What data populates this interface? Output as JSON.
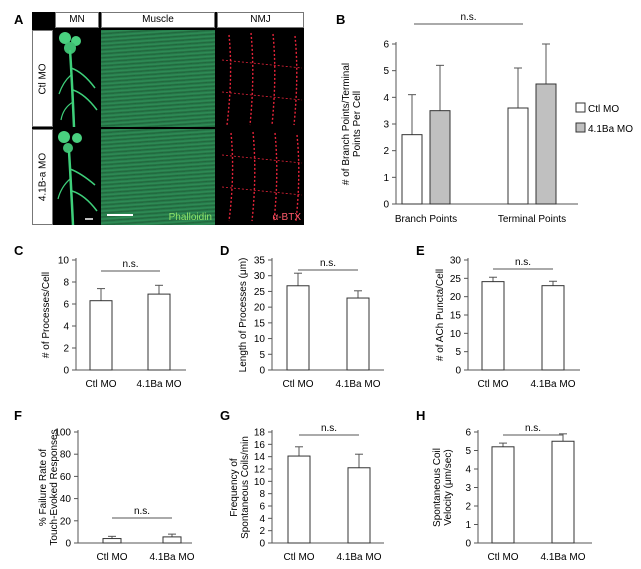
{
  "micrograph": {
    "letter": "A",
    "columns": [
      "MN",
      "Muscle",
      "NMJ"
    ],
    "rows": [
      "Ctl MO",
      "4.1B-a MO"
    ],
    "stain_green": "Phalloidin",
    "stain_red": "α-BTX",
    "colors": {
      "green": "#3ecf7a",
      "red": "#e8243a",
      "muscle": "#2e8a55"
    }
  },
  "chart_data": [
    {
      "id": "B",
      "letter": "B",
      "type": "bar",
      "categories": [
        "Branch Points",
        "Terminal Points"
      ],
      "series": [
        {
          "name": "Ctl MO",
          "values": [
            2.6,
            3.6
          ],
          "errors": [
            1.5,
            1.5
          ],
          "color": "#ffffff"
        },
        {
          "name": "4.1Ba MO",
          "values": [
            3.5,
            4.5
          ],
          "errors": [
            1.7,
            1.5
          ],
          "color": "#c0c0c0"
        }
      ],
      "ylabel": "# of Branch Points/Terminal Points Per Cell",
      "ylim": [
        0,
        6
      ],
      "yticks": [
        0,
        1,
        2,
        3,
        4,
        5,
        6
      ],
      "significance": "n.s.",
      "legend": "right"
    },
    {
      "id": "C",
      "letter": "C",
      "type": "bar",
      "categories": [
        "Ctl MO",
        "4.1Ba MO"
      ],
      "values": [
        6.3,
        6.9
      ],
      "errors": [
        1.1,
        0.8
      ],
      "ylabel": "# of Processes/Cell",
      "ylim": [
        0,
        10
      ],
      "yticks": [
        0,
        2,
        4,
        6,
        8,
        10
      ],
      "significance": "n.s."
    },
    {
      "id": "D",
      "letter": "D",
      "type": "bar",
      "categories": [
        "Ctl MO",
        "4.1Ba MO"
      ],
      "values": [
        26.8,
        22.9
      ],
      "errors": [
        4.0,
        2.3
      ],
      "ylabel": "Length of Processes (μm)",
      "ylim": [
        0,
        35
      ],
      "yticks": [
        0,
        5,
        10,
        15,
        20,
        25,
        30,
        35
      ],
      "significance": "n.s."
    },
    {
      "id": "E",
      "letter": "E",
      "type": "bar",
      "categories": [
        "Ctl MO",
        "4.1Ba MO"
      ],
      "values": [
        24.1,
        23.0
      ],
      "errors": [
        1.2,
        1.2
      ],
      "ylabel": "# of ACh Puncta/Cell",
      "ylim": [
        0,
        30
      ],
      "yticks": [
        0,
        5,
        10,
        15,
        20,
        25,
        30
      ],
      "significance": "n.s."
    },
    {
      "id": "F",
      "letter": "F",
      "type": "bar",
      "categories": [
        "Ctl MO",
        "4.1Ba MO"
      ],
      "values": [
        4,
        5.5
      ],
      "errors": [
        2,
        2.5
      ],
      "ylabel": "% Failure Rate of Touch-Evoked Responses",
      "ylim": [
        0,
        100
      ],
      "yticks": [
        0,
        20,
        40,
        60,
        80,
        100
      ],
      "significance": "n.s."
    },
    {
      "id": "G",
      "letter": "G",
      "type": "bar",
      "categories": [
        "Ctl MO",
        "4.1Ba MO"
      ],
      "values": [
        14.1,
        12.2
      ],
      "errors": [
        1.5,
        2.2
      ],
      "ylabel": "Frequency of Spontaneous Coils/min",
      "ylim": [
        0,
        18
      ],
      "yticks": [
        0,
        2,
        4,
        6,
        8,
        10,
        12,
        14,
        16,
        18
      ],
      "significance": "n.s."
    },
    {
      "id": "H",
      "letter": "H",
      "type": "bar",
      "categories": [
        "Ctl MO",
        "4.1Ba MO"
      ],
      "values": [
        5.2,
        5.5
      ],
      "errors": [
        0.2,
        0.4
      ],
      "ylabel": "Spontaneous Coil Velocity (μm/sec)",
      "ylim": [
        0,
        6
      ],
      "yticks": [
        0,
        1,
        2,
        3,
        4,
        5,
        6
      ],
      "significance": "n.s."
    }
  ]
}
